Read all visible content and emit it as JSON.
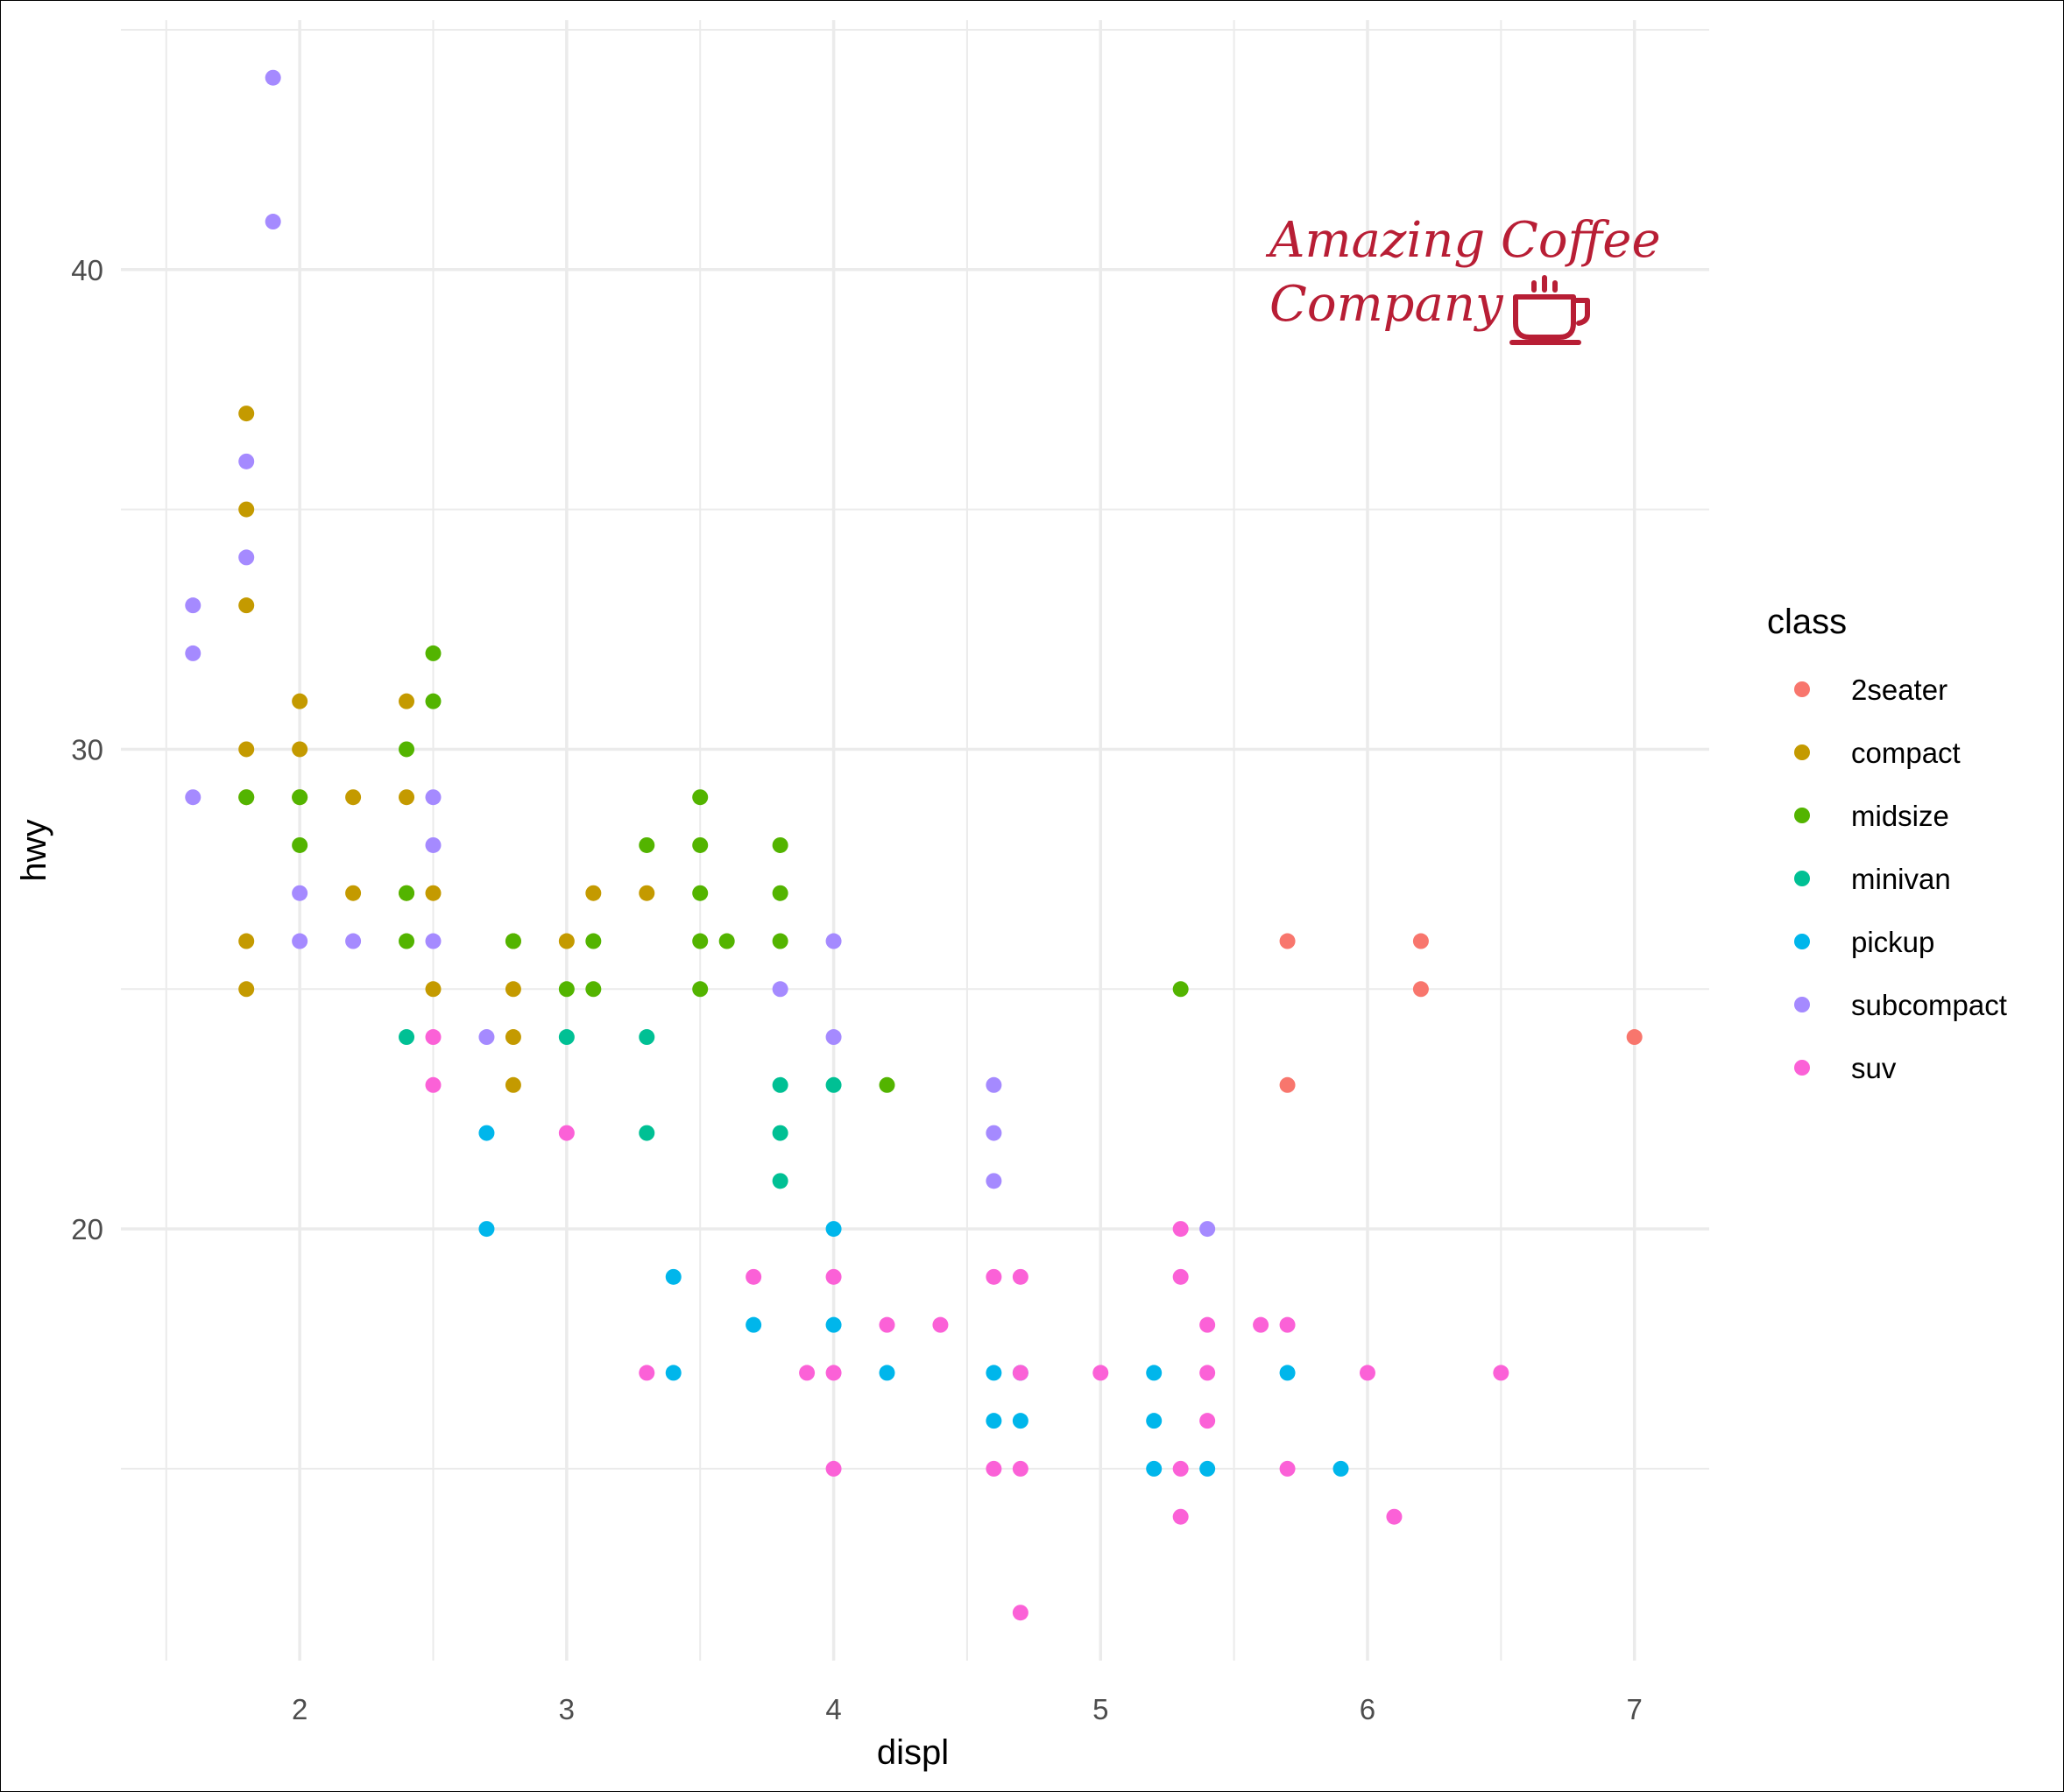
{
  "chart_data": {
    "type": "scatter",
    "xlabel": "displ",
    "ylabel": "hwy",
    "xlim": [
      1.33,
      7.28
    ],
    "ylim": [
      11,
      45.2
    ],
    "x_ticks": [
      2,
      3,
      4,
      5,
      6,
      7
    ],
    "y_ticks": [
      20,
      30,
      40
    ],
    "grid": true,
    "legend": {
      "title": "class",
      "position": "right"
    },
    "series": [
      {
        "name": "2seater",
        "color": "#F8766D",
        "points": [
          [
            5.7,
            26
          ],
          [
            5.7,
            23
          ],
          [
            6.2,
            26
          ],
          [
            6.2,
            25
          ],
          [
            7.0,
            24
          ]
        ]
      },
      {
        "name": "compact",
        "color": "#C49A00",
        "points": [
          [
            1.8,
            37
          ],
          [
            1.8,
            35
          ],
          [
            1.8,
            33
          ],
          [
            1.8,
            30
          ],
          [
            1.8,
            29
          ],
          [
            1.8,
            26
          ],
          [
            1.8,
            25
          ],
          [
            2.0,
            31
          ],
          [
            2.0,
            30
          ],
          [
            2.0,
            29
          ],
          [
            2.2,
            29
          ],
          [
            2.2,
            27
          ],
          [
            2.4,
            31
          ],
          [
            2.4,
            29
          ],
          [
            2.4,
            27
          ],
          [
            2.5,
            27
          ],
          [
            2.5,
            25
          ],
          [
            2.8,
            26
          ],
          [
            2.8,
            25
          ],
          [
            2.8,
            24
          ],
          [
            2.8,
            23
          ],
          [
            3.0,
            26
          ],
          [
            3.1,
            27
          ],
          [
            3.3,
            27
          ]
        ]
      },
      {
        "name": "midsize",
        "color": "#53B400",
        "points": [
          [
            1.8,
            29
          ],
          [
            2.0,
            29
          ],
          [
            2.0,
            28
          ],
          [
            2.4,
            30
          ],
          [
            2.4,
            27
          ],
          [
            2.4,
            26
          ],
          [
            2.5,
            32
          ],
          [
            2.5,
            31
          ],
          [
            2.8,
            26
          ],
          [
            3.0,
            25
          ],
          [
            3.1,
            26
          ],
          [
            3.1,
            25
          ],
          [
            3.3,
            28
          ],
          [
            3.5,
            29
          ],
          [
            3.5,
            28
          ],
          [
            3.5,
            27
          ],
          [
            3.5,
            26
          ],
          [
            3.5,
            25
          ],
          [
            3.6,
            26
          ],
          [
            3.8,
            28
          ],
          [
            3.8,
            27
          ],
          [
            3.8,
            26
          ],
          [
            4.2,
            23
          ],
          [
            5.3,
            25
          ]
        ]
      },
      {
        "name": "minivan",
        "color": "#00C094",
        "points": [
          [
            2.4,
            24
          ],
          [
            3.0,
            24
          ],
          [
            3.3,
            24
          ],
          [
            3.3,
            22
          ],
          [
            3.8,
            23
          ],
          [
            3.8,
            22
          ],
          [
            3.8,
            21
          ],
          [
            4.0,
            23
          ]
        ]
      },
      {
        "name": "pickup",
        "color": "#00B6EB",
        "points": [
          [
            2.7,
            22
          ],
          [
            2.7,
            20
          ],
          [
            3.4,
            19
          ],
          [
            3.4,
            17
          ],
          [
            3.7,
            18
          ],
          [
            4.0,
            20
          ],
          [
            4.0,
            18
          ],
          [
            4.2,
            17
          ],
          [
            4.6,
            17
          ],
          [
            4.6,
            16
          ],
          [
            4.7,
            17
          ],
          [
            4.7,
            16
          ],
          [
            5.2,
            17
          ],
          [
            5.2,
            16
          ],
          [
            5.2,
            15
          ],
          [
            5.4,
            15
          ],
          [
            5.7,
            17
          ],
          [
            5.9,
            15
          ]
        ]
      },
      {
        "name": "subcompact",
        "color": "#A58AFF",
        "points": [
          [
            1.6,
            33
          ],
          [
            1.6,
            32
          ],
          [
            1.6,
            29
          ],
          [
            1.8,
            36
          ],
          [
            1.8,
            34
          ],
          [
            1.9,
            44
          ],
          [
            1.9,
            41
          ],
          [
            2.0,
            27
          ],
          [
            2.0,
            26
          ],
          [
            2.2,
            26
          ],
          [
            2.5,
            29
          ],
          [
            2.5,
            28
          ],
          [
            2.5,
            26
          ],
          [
            2.7,
            24
          ],
          [
            3.8,
            25
          ],
          [
            4.0,
            26
          ],
          [
            4.0,
            24
          ],
          [
            4.6,
            23
          ],
          [
            4.6,
            22
          ],
          [
            4.6,
            21
          ],
          [
            5.4,
            20
          ]
        ]
      },
      {
        "name": "suv",
        "color": "#FB61D7",
        "points": [
          [
            2.5,
            24
          ],
          [
            2.5,
            23
          ],
          [
            3.0,
            22
          ],
          [
            3.3,
            17
          ],
          [
            3.7,
            19
          ],
          [
            3.9,
            17
          ],
          [
            4.0,
            19
          ],
          [
            4.0,
            17
          ],
          [
            4.0,
            15
          ],
          [
            4.2,
            18
          ],
          [
            4.4,
            18
          ],
          [
            4.6,
            19
          ],
          [
            4.6,
            15
          ],
          [
            4.7,
            19
          ],
          [
            4.7,
            17
          ],
          [
            4.7,
            15
          ],
          [
            4.7,
            12
          ],
          [
            5.0,
            17
          ],
          [
            5.3,
            20
          ],
          [
            5.3,
            19
          ],
          [
            5.3,
            15
          ],
          [
            5.3,
            14
          ],
          [
            5.4,
            18
          ],
          [
            5.4,
            17
          ],
          [
            5.4,
            16
          ],
          [
            5.6,
            18
          ],
          [
            5.7,
            18
          ],
          [
            5.7,
            15
          ],
          [
            6.0,
            17
          ],
          [
            6.1,
            14
          ],
          [
            6.5,
            17
          ]
        ]
      }
    ]
  },
  "logo": {
    "line1": "Amazing Coffee",
    "line2": "Company",
    "icon": "coffee-cup-icon",
    "color": "#B81E35"
  }
}
